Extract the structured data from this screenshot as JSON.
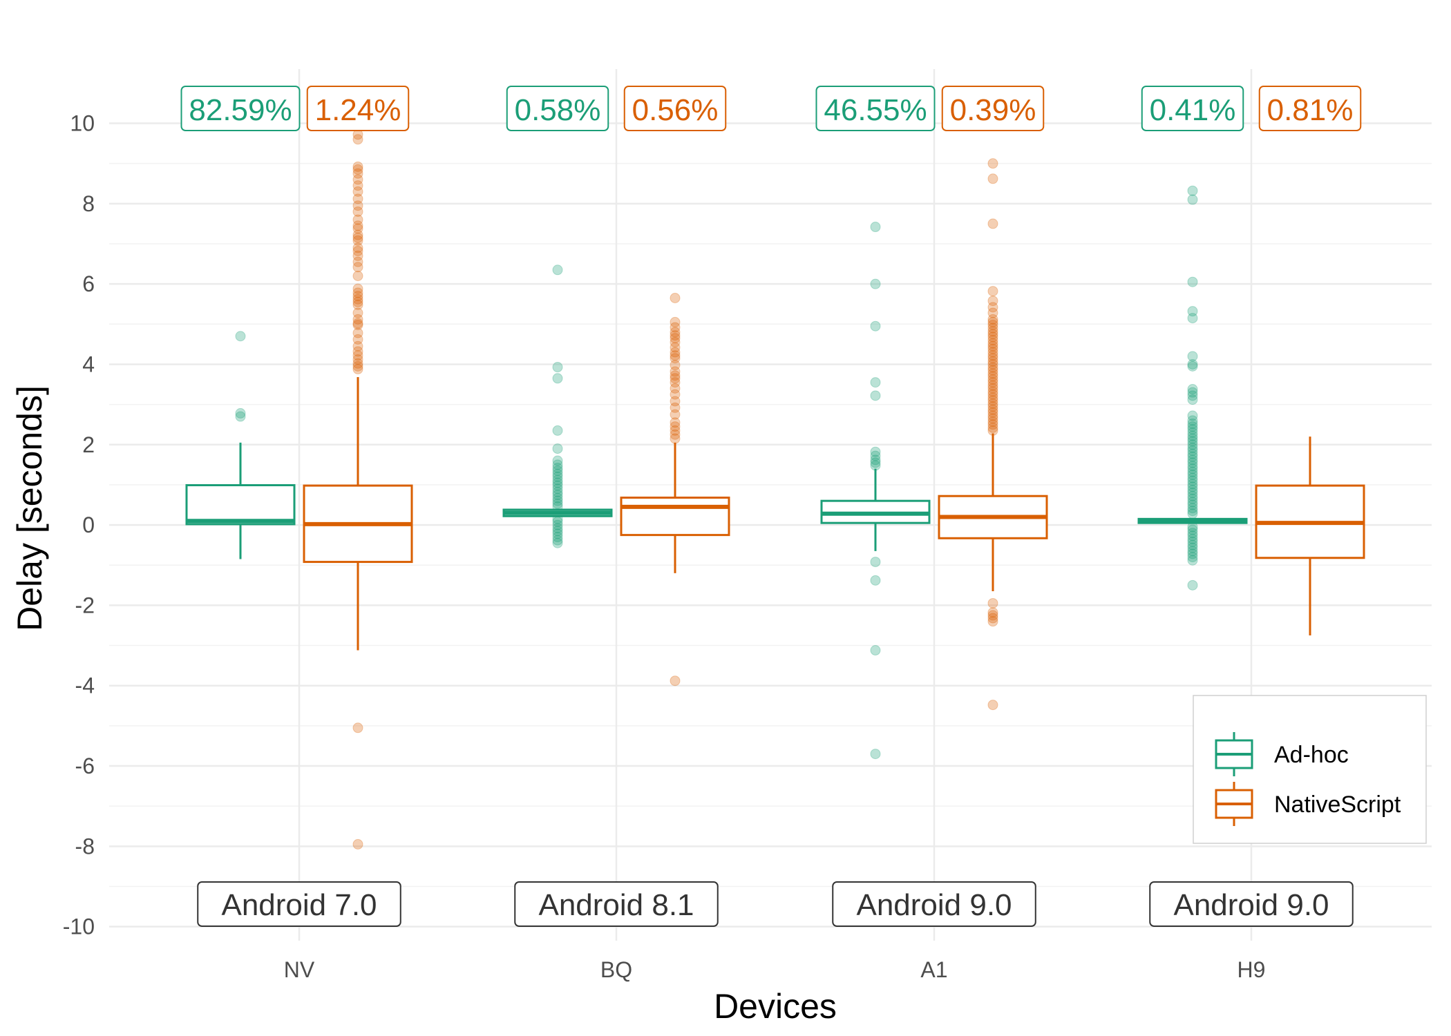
{
  "chart_data": {
    "type": "box",
    "xlabel": "Devices",
    "ylabel": "Delay [seconds]",
    "ylim": [
      -10.35,
      11.35
    ],
    "y_ticks": [
      -10,
      -8,
      -6,
      -4,
      -2,
      0,
      2,
      4,
      6,
      8,
      10
    ],
    "grid": true,
    "legend_position": "bottom-right",
    "categories": [
      "NV",
      "BQ",
      "A1",
      "H9"
    ],
    "platform_labels": [
      "Android 7.0",
      "Android 8.1",
      "Android 9.0",
      "Android 9.0"
    ],
    "series": [
      {
        "name": "Ad-hoc",
        "color": "#1b9e77",
        "percent_labels": [
          "82.59%",
          "0.58%",
          "46.55%",
          "0.41%"
        ],
        "boxes": [
          {
            "q1": 0.02,
            "median": 0.1,
            "q3": 0.99,
            "whisker_low": -0.85,
            "whisker_high": 2.05,
            "outliers": [
              4.7,
              2.78,
              2.7
            ]
          },
          {
            "q1": 0.22,
            "median": 0.3,
            "q3": 0.38,
            "whisker_low": 0.22,
            "whisker_high": 0.38,
            "outliers": [
              6.35,
              3.93,
              3.65,
              2.35,
              1.9,
              1.6,
              1.5,
              1.42,
              1.35,
              1.27,
              1.2,
              1.12,
              1.05,
              0.98,
              0.9,
              0.82,
              0.75,
              0.67,
              0.6,
              0.53,
              0.46,
              0.15,
              0.08,
              0.0,
              -0.08,
              -0.15,
              -0.22,
              -0.3,
              -0.38,
              -0.45
            ]
          },
          {
            "q1": 0.05,
            "median": 0.28,
            "q3": 0.6,
            "whisker_low": -0.65,
            "whisker_high": 1.4,
            "outliers": [
              7.42,
              6.0,
              4.95,
              3.55,
              3.22,
              1.82,
              1.72,
              1.62,
              1.55,
              1.48,
              -0.92,
              -1.38,
              -3.12,
              -5.7
            ]
          },
          {
            "q1": 0.05,
            "median": 0.1,
            "q3": 0.15,
            "whisker_low": 0.05,
            "whisker_high": 0.15,
            "outliers": [
              8.32,
              8.1,
              6.05,
              5.32,
              5.15,
              4.2,
              4.0,
              3.95,
              3.38,
              3.3,
              3.22,
              3.12,
              2.72,
              2.6,
              2.52,
              2.45,
              2.38,
              2.3,
              2.22,
              2.15,
              2.08,
              2.0,
              1.92,
              1.85,
              1.77,
              1.7,
              1.62,
              1.55,
              1.47,
              1.4,
              1.32,
              1.25,
              1.17,
              1.1,
              1.02,
              0.95,
              0.87,
              0.8,
              0.72,
              0.65,
              0.57,
              0.5,
              0.42,
              0.35,
              0.28,
              -0.05,
              -0.12,
              -0.2,
              -0.27,
              -0.35,
              -0.42,
              -0.5,
              -0.57,
              -0.65,
              -0.72,
              -0.8,
              -0.88,
              -1.5
            ]
          }
        ]
      },
      {
        "name": "NativeScript",
        "color": "#d95f02",
        "percent_labels": [
          "1.24%",
          "0.56%",
          "0.39%",
          "0.81%"
        ],
        "boxes": [
          {
            "q1": -0.92,
            "median": 0.02,
            "q3": 0.98,
            "whisker_low": -3.12,
            "whisker_high": 3.68,
            "outliers": [
              9.72,
              9.6,
              8.92,
              8.85,
              8.75,
              8.6,
              8.45,
              8.3,
              8.12,
              7.95,
              7.8,
              7.6,
              7.45,
              7.38,
              7.22,
              7.15,
              7.08,
              6.9,
              6.82,
              6.7,
              6.55,
              6.42,
              6.2,
              5.88,
              5.78,
              5.7,
              5.62,
              5.55,
              5.48,
              5.28,
              5.12,
              5.02,
              4.98,
              4.78,
              4.62,
              4.45,
              4.32,
              4.22,
              4.12,
              4.02,
              3.95,
              3.88,
              -5.05,
              -7.95
            ]
          },
          {
            "q1": -0.25,
            "median": 0.45,
            "q3": 0.68,
            "whisker_low": -1.2,
            "whisker_high": 2.05,
            "outliers": [
              5.65,
              5.05,
              4.92,
              4.8,
              4.72,
              4.65,
              4.55,
              4.42,
              4.3,
              4.22,
              4.15,
              3.98,
              3.82,
              3.72,
              3.65,
              3.55,
              3.4,
              3.25,
              3.08,
              2.92,
              2.75,
              2.55,
              2.45,
              2.35,
              2.25,
              2.15,
              -3.88
            ]
          },
          {
            "q1": -0.33,
            "median": 0.2,
            "q3": 0.72,
            "whisker_low": -1.65,
            "whisker_high": 2.28,
            "outliers": [
              9.0,
              8.62,
              7.5,
              5.82,
              5.58,
              5.42,
              5.28,
              5.12,
              5.05,
              4.98,
              4.9,
              4.82,
              4.75,
              4.68,
              4.6,
              4.52,
              4.45,
              4.38,
              4.3,
              4.22,
              4.15,
              4.07,
              4.0,
              3.92,
              3.85,
              3.77,
              3.7,
              3.62,
              3.55,
              3.47,
              3.4,
              3.32,
              3.25,
              3.17,
              3.1,
              3.02,
              2.95,
              2.87,
              2.8,
              2.72,
              2.65,
              2.57,
              2.5,
              2.42,
              2.35,
              -1.95,
              -2.18,
              -2.25,
              -2.32,
              -2.4,
              -4.48
            ]
          },
          {
            "q1": -0.82,
            "median": 0.05,
            "q3": 0.98,
            "whisker_low": -2.75,
            "whisker_high": 2.2,
            "outliers": []
          }
        ]
      }
    ]
  }
}
